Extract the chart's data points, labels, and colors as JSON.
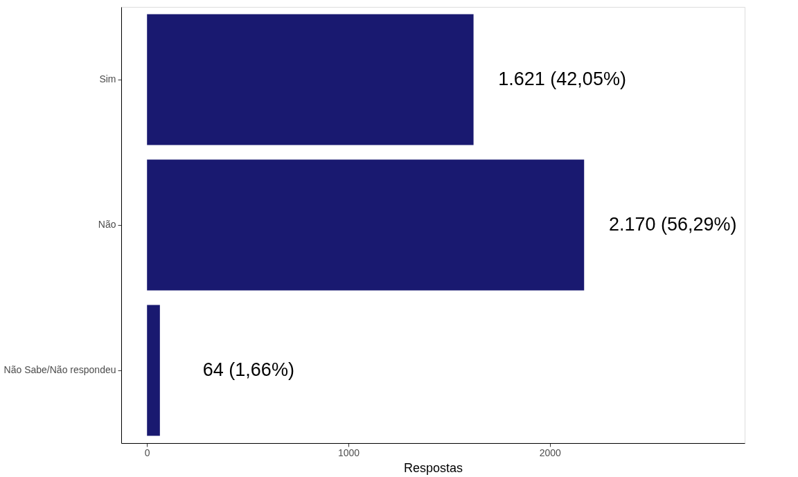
{
  "chart_data": {
    "type": "bar",
    "orientation": "horizontal",
    "categories": [
      "Sim",
      "Não",
      "Não Sabe/Não respondeu"
    ],
    "values": [
      1621,
      2170,
      64
    ],
    "color": "#191970",
    "value_labels": [
      "1.621 (42,05%)",
      "2.170 (56,29%)",
      "64 (1,66%)"
    ],
    "xlabel": "Respostas",
    "xlim": [
      -128,
      2967
    ],
    "xticks": [
      0,
      1000,
      2000
    ],
    "grid": false
  }
}
